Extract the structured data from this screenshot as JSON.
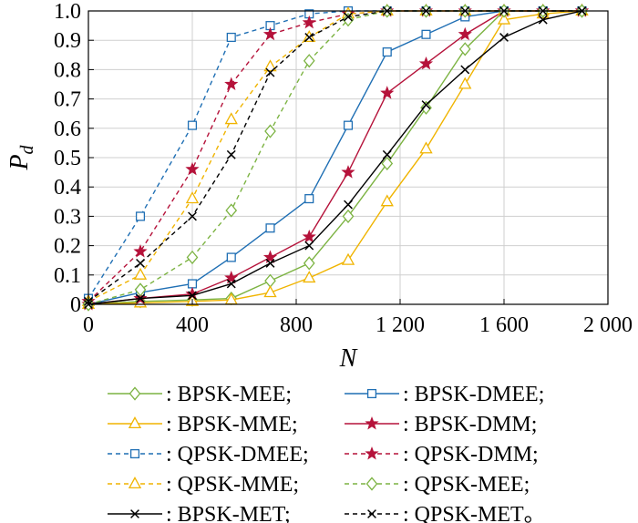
{
  "chart_data": {
    "type": "line",
    "title": "",
    "xlabel": "N",
    "ylabel": "P",
    "ylabel_subscript": "d",
    "xlim": [
      0,
      2000
    ],
    "ylim": [
      0,
      1.0
    ],
    "xticks": [
      0,
      400,
      800,
      1200,
      1600,
      2000
    ],
    "xtick_labels": [
      "0",
      "400",
      "800",
      "1 200",
      "1 600",
      "2 000"
    ],
    "yticks": [
      0,
      0.1,
      0.2,
      0.3,
      0.4,
      0.5,
      0.6,
      0.7,
      0.8,
      0.9,
      1.0
    ],
    "ytick_labels": [
      "0",
      "0.1",
      "0.2",
      "0.3",
      "0.4",
      "0.5",
      "0.6",
      "0.7",
      "0.8",
      "0.9",
      "1.0"
    ],
    "grid": true,
    "legend_position": "below",
    "series": [
      {
        "name": ": BPSK-MEE;",
        "color": "#7cb342",
        "dash": "solid",
        "marker": "diamond",
        "x": [
          0,
          200,
          400,
          550,
          700,
          850,
          1000,
          1150,
          1300,
          1450,
          1600,
          1750,
          1900
        ],
        "y": [
          0.0,
          0.01,
          0.015,
          0.02,
          0.08,
          0.14,
          0.3,
          0.48,
          0.67,
          0.87,
          1.0,
          1.0,
          1.0
        ]
      },
      {
        "name": ": BPSK-DMEE;",
        "color": "#1f6fb4",
        "dash": "solid",
        "marker": "square",
        "x": [
          0,
          200,
          400,
          550,
          700,
          850,
          1000,
          1150,
          1300,
          1450,
          1600,
          1750,
          1900
        ],
        "y": [
          0.0,
          0.04,
          0.07,
          0.16,
          0.26,
          0.36,
          0.61,
          0.86,
          0.92,
          0.98,
          1.0,
          1.0,
          1.0
        ]
      },
      {
        "name": ": BPSK-MME;",
        "color": "#f0b400",
        "dash": "solid",
        "marker": "triangle",
        "x": [
          0,
          200,
          400,
          550,
          700,
          850,
          1000,
          1150,
          1300,
          1450,
          1600,
          1750,
          1900
        ],
        "y": [
          0.0,
          0.005,
          0.01,
          0.015,
          0.04,
          0.09,
          0.15,
          0.35,
          0.53,
          0.75,
          0.97,
          0.99,
          1.0
        ]
      },
      {
        "name": ": BPSK-DMM;",
        "color": "#b5123a",
        "dash": "solid",
        "marker": "star",
        "x": [
          0,
          200,
          400,
          550,
          700,
          850,
          1000,
          1150,
          1300,
          1450,
          1600,
          1750,
          1900
        ],
        "y": [
          0.0,
          0.02,
          0.035,
          0.09,
          0.16,
          0.23,
          0.45,
          0.72,
          0.82,
          0.92,
          1.0,
          1.0,
          1.0
        ]
      },
      {
        "name": ": QPSK-DMEE;",
        "color": "#1f6fb4",
        "dash": "dashed",
        "marker": "square",
        "x": [
          0,
          200,
          400,
          550,
          700,
          850,
          1000,
          1150,
          1300,
          1450,
          1600,
          1750,
          1900
        ],
        "y": [
          0.02,
          0.3,
          0.61,
          0.91,
          0.95,
          0.99,
          1.0,
          1.0,
          1.0,
          1.0,
          1.0,
          1.0,
          1.0
        ]
      },
      {
        "name": ": QPSK-DMM;",
        "color": "#b5123a",
        "dash": "dashed",
        "marker": "star",
        "x": [
          0,
          200,
          400,
          550,
          700,
          850,
          1000,
          1150,
          1300,
          1450,
          1600,
          1750,
          1900
        ],
        "y": [
          0.01,
          0.18,
          0.46,
          0.75,
          0.92,
          0.96,
          0.99,
          1.0,
          1.0,
          1.0,
          1.0,
          1.0,
          1.0
        ]
      },
      {
        "name": ": QPSK-MME;",
        "color": "#f0b400",
        "dash": "dashed",
        "marker": "triangle",
        "x": [
          0,
          200,
          400,
          550,
          700,
          850,
          1000,
          1150,
          1300,
          1450,
          1600,
          1750,
          1900
        ],
        "y": [
          0.01,
          0.1,
          0.36,
          0.63,
          0.81,
          0.91,
          0.99,
          1.0,
          1.0,
          1.0,
          1.0,
          1.0,
          1.0
        ]
      },
      {
        "name": ": QPSK-MEE;",
        "color": "#7cb342",
        "dash": "dashed",
        "marker": "diamond",
        "x": [
          0,
          200,
          400,
          550,
          700,
          850,
          1000,
          1150,
          1300,
          1450,
          1600,
          1750,
          1900
        ],
        "y": [
          0.0,
          0.05,
          0.16,
          0.32,
          0.59,
          0.83,
          0.97,
          1.0,
          1.0,
          1.0,
          1.0,
          1.0,
          1.0
        ]
      },
      {
        "name": ": BPSK-MET;",
        "color": "#000000",
        "dash": "solid",
        "marker": "x",
        "x": [
          0,
          200,
          400,
          550,
          700,
          850,
          1000,
          1150,
          1300,
          1450,
          1600,
          1750,
          1900
        ],
        "y": [
          0.0,
          0.02,
          0.03,
          0.07,
          0.14,
          0.2,
          0.34,
          0.51,
          0.68,
          0.8,
          0.91,
          0.97,
          1.0
        ]
      },
      {
        "name": ": QPSK-MET。",
        "color": "#000000",
        "dash": "dashed",
        "marker": "x",
        "x": [
          0,
          200,
          400,
          550,
          700,
          850,
          1000,
          1150,
          1300,
          1450,
          1600,
          1750,
          1900
        ],
        "y": [
          0.01,
          0.14,
          0.3,
          0.51,
          0.79,
          0.91,
          0.98,
          1.0,
          1.0,
          1.0,
          1.0,
          1.0,
          1.0
        ]
      }
    ]
  }
}
